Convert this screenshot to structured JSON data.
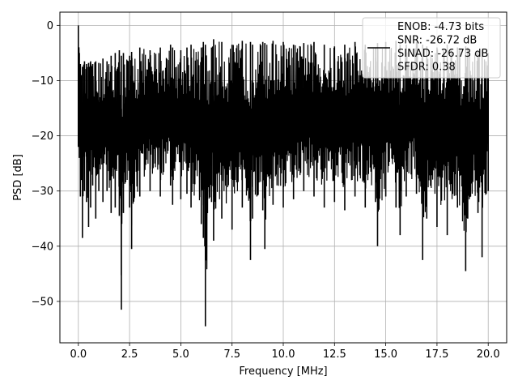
{
  "chart_data": {
    "type": "line",
    "xlabel": "Frequency [MHz]",
    "ylabel": "PSD [dB]",
    "xlim": [
      -0.9,
      20.9
    ],
    "ylim": [
      -57.5,
      2.4
    ],
    "xticks": [
      0.0,
      2.5,
      5.0,
      7.5,
      10.0,
      12.5,
      15.0,
      17.5,
      20.0
    ],
    "xtick_labels": [
      "0.0",
      "2.5",
      "5.0",
      "7.5",
      "10.0",
      "12.5",
      "15.0",
      "17.5",
      "20.0"
    ],
    "yticks": [
      0,
      -10,
      -20,
      -30,
      -40,
      -50
    ],
    "ytick_labels": [
      "0",
      "−10",
      "−20",
      "−30",
      "−40",
      "−50"
    ],
    "grid": true,
    "legend_position": "top-right",
    "legend_lines": [
      "ENOB: -4.73 bits",
      "SNR: -26.72 dB",
      "SINAD: -26.73 dB",
      "SFDR: 0.38"
    ],
    "series": [
      {
        "color": "#000000",
        "x": [
          0.0,
          0.05,
          0.1,
          0.15,
          0.2,
          0.3,
          0.4,
          0.5,
          0.6,
          0.7,
          0.85,
          1.0,
          1.2,
          1.4,
          1.6,
          1.8,
          2.0,
          2.1,
          2.2,
          2.5,
          2.6,
          3.0,
          3.5,
          4.0,
          4.5,
          4.6,
          5.0,
          5.3,
          5.5,
          6.0,
          6.1,
          6.2,
          6.5,
          6.6,
          7.0,
          7.5,
          8.0,
          8.4,
          8.5,
          9.0,
          9.1,
          9.5,
          10.0,
          10.5,
          11.0,
          11.5,
          12.0,
          12.5,
          13.0,
          13.5,
          14.0,
          14.5,
          14.6,
          15.0,
          15.5,
          15.7,
          16.0,
          16.5,
          16.8,
          17.0,
          17.5,
          18.0,
          18.5,
          18.9,
          19.0,
          19.5,
          19.7,
          20.0
        ],
        "y_max": [
          0.0,
          -5.0,
          -7.0,
          -9.0,
          -7.5,
          -6.5,
          -7.0,
          -6.8,
          -6.5,
          -7.0,
          -6.5,
          -6.8,
          -6.0,
          -6.5,
          -5.5,
          -5.0,
          -4.5,
          -5.5,
          -5.0,
          -5.5,
          -4.8,
          -4.0,
          -4.5,
          -4.0,
          -3.5,
          -4.0,
          -4.5,
          -4.0,
          -3.5,
          -4.0,
          -3.0,
          -3.5,
          -4.0,
          -2.5,
          -3.0,
          -3.5,
          -2.8,
          -3.0,
          -3.5,
          -3.0,
          -3.2,
          -2.8,
          -3.0,
          -3.5,
          -3.2,
          -3.0,
          -3.5,
          -3.8,
          -3.5,
          -3.0,
          -3.5,
          -4.0,
          -3.2,
          -3.0,
          -2.8,
          -3.5,
          -3.5,
          -3.0,
          -3.5,
          -3.8,
          -4.0,
          -3.5,
          -4.0,
          -3.8,
          -4.0,
          -4.5,
          -4.5,
          -5.0
        ],
        "y_min": [
          -22.0,
          -24.0,
          -31.0,
          -28.0,
          -38.5,
          -30.0,
          -32.0,
          -36.5,
          -33.0,
          -29.0,
          -35.0,
          -30.0,
          -32.0,
          -30.0,
          -34.0,
          -33.0,
          -34.5,
          -51.5,
          -34.0,
          -33.0,
          -40.5,
          -31.0,
          -30.0,
          -31.0,
          -29.0,
          -32.5,
          -31.5,
          -30.5,
          -33.0,
          -36.0,
          -38.5,
          -54.5,
          -32.0,
          -39.0,
          -35.0,
          -37.0,
          -33.0,
          -42.5,
          -35.0,
          -33.5,
          -40.5,
          -32.5,
          -33.0,
          -31.5,
          -30.0,
          -31.0,
          -33.0,
          -32.0,
          -33.5,
          -31.0,
          -33.0,
          -32.0,
          -40.0,
          -31.0,
          -33.0,
          -38.0,
          -31.0,
          -30.5,
          -42.5,
          -35.0,
          -36.5,
          -38.0,
          -33.0,
          -44.5,
          -35.0,
          -34.0,
          -42.0,
          -30.0
        ]
      }
    ]
  }
}
